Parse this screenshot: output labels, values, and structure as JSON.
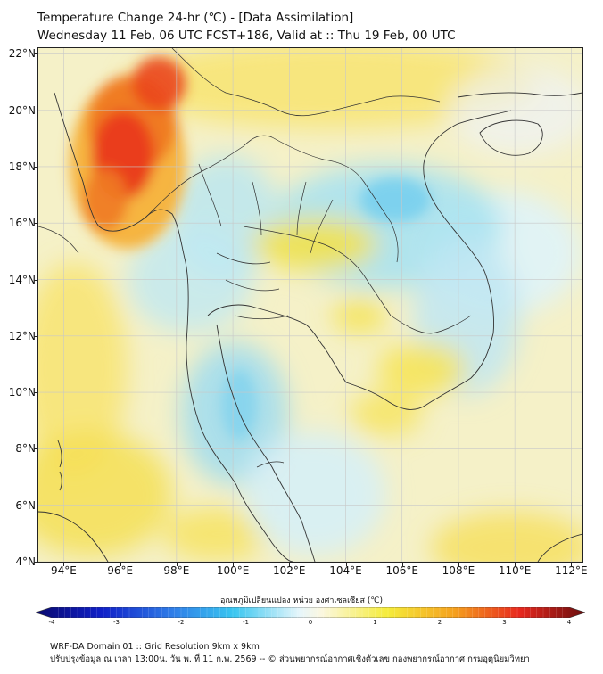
{
  "header": {
    "title": "Temperature Change 24-hr (℃) - [Data Assimilation]",
    "subtitle": "Wednesday 11 Feb, 06 UTC FCST+186, Valid at :: Thu 19 Feb, 00 UTC"
  },
  "map": {
    "lat_labels": [
      "22°N",
      "20°N",
      "18°N",
      "16°N",
      "14°N",
      "12°N",
      "10°N",
      "8°N",
      "6°N",
      "4°N"
    ],
    "lon_labels": [
      "94°E",
      "96°E",
      "98°E",
      "100°E",
      "102°E",
      "104°E",
      "106°E",
      "108°E",
      "110°E",
      "112°E"
    ],
    "lat_values": [
      22,
      20,
      18,
      16,
      14,
      12,
      10,
      8,
      6,
      4
    ],
    "lon_values": [
      94,
      96,
      98,
      100,
      102,
      104,
      106,
      108,
      110,
      112
    ],
    "extent": {
      "lon_min": 93.1,
      "lon_max": 112.4,
      "lat_min": 4.0,
      "lat_max": 22.2
    }
  },
  "colorbar": {
    "title": "อุณหภูมิเปลี่ยนแปลง หน่วย องศาเซลเซียส (℃)",
    "min": -4,
    "max": 4,
    "tick_labels": [
      "-4",
      "-3",
      "-2",
      "-1",
      "0",
      "1",
      "2",
      "3",
      "4"
    ],
    "tick_values": [
      -4,
      -3,
      -2,
      -1,
      0,
      1,
      2,
      3,
      4
    ],
    "colors": [
      "#0a0a6e",
      "#1020c8",
      "#2f7ee8",
      "#39c6f0",
      "#e6f6fb",
      "#fbf7e0",
      "#f5ec3a",
      "#f5a21e",
      "#e8281e",
      "#6a0e0e"
    ]
  },
  "footer": {
    "line1": "WRF-DA Domain 01 :: Grid Resolution 9km x 9km",
    "line2": "ปรับปรุงข้อมูล ณ เวลา 13:00น. วัน พ. ที่ 11 ก.พ. 2569 -- © ส่วนพยากรณ์อากาศเชิงตัวเลข กองพยากรณ์อากาศ กรมอุตุนิยมวิทยา"
  }
}
